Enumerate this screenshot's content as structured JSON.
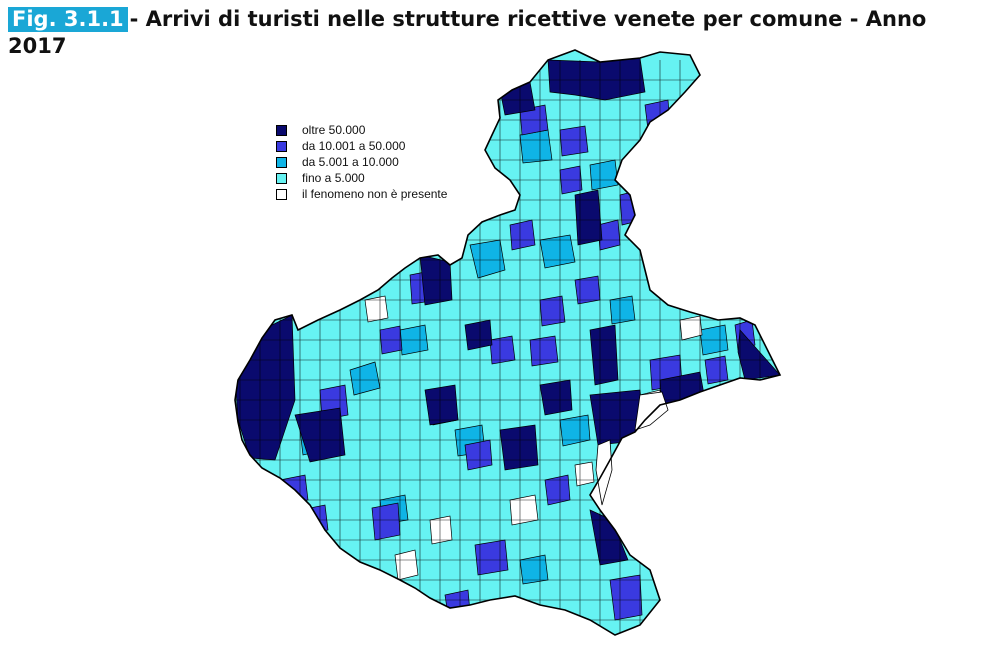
{
  "title": {
    "fig_label": "Fig. 3.1.1",
    "text": "- Arrivi di turisti nelle strutture ricettive venete per comune - Anno 2017"
  },
  "legend": {
    "items": [
      {
        "label": "oltre 50.000",
        "color": "#0a0a6e"
      },
      {
        "label": "da 10.001 a 50.000",
        "color": "#3a3ae0"
      },
      {
        "label": "da 5.001 a 10.000",
        "color": "#0fb4e6"
      },
      {
        "label": "fino a 5.000",
        "color": "#66f2f2"
      },
      {
        "label": "il fenomeno non è presente",
        "color": "#ffffff"
      }
    ]
  },
  "colors": {
    "outline": "#000000",
    "fig_tag_bg": "#1aa7d6"
  }
}
